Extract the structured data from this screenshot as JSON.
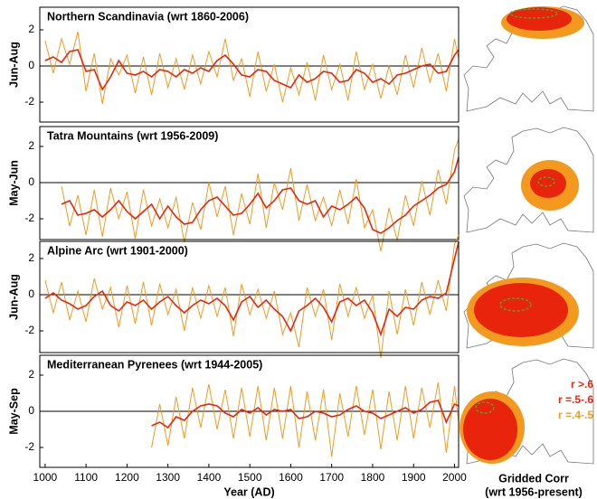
{
  "chart_data": [
    {
      "type": "line",
      "title": "Northern Scandinavia (wrt 1860-2006)",
      "ylabel": "Jun-Aug",
      "x": [
        1000,
        1020,
        1040,
        1060,
        1080,
        1100,
        1120,
        1140,
        1160,
        1180,
        1200,
        1220,
        1240,
        1260,
        1280,
        1300,
        1320,
        1340,
        1360,
        1380,
        1400,
        1420,
        1440,
        1460,
        1480,
        1500,
        1520,
        1540,
        1560,
        1580,
        1600,
        1620,
        1640,
        1660,
        1680,
        1700,
        1720,
        1740,
        1760,
        1780,
        1800,
        1820,
        1840,
        1860,
        1880,
        1900,
        1920,
        1940,
        1960,
        1980,
        2000,
        2010
      ],
      "series": [
        {
          "color": "#f39a1e",
          "values": [
            1.4,
            -0.4,
            1.5,
            0.1,
            1.9,
            -1.4,
            0.7,
            -2.1,
            0.4,
            -0.5,
            0.6,
            -1.5,
            0.5,
            -1.6,
            0.7,
            -1.2,
            0.4,
            -1.3,
            0.6,
            -1.0,
            0.8,
            -0.6,
            1.5,
            -0.8,
            0.4,
            -1.7,
            0.8,
            -1.4,
            0.1,
            -2.0,
            -0.1,
            -1.6,
            0.2,
            -1.9,
            0.6,
            -1.3,
            0.1,
            -1.9,
            0.8,
            -1.3,
            0.1,
            -1.8,
            0.0,
            -1.6,
            0.6,
            -1.2,
            1.0,
            -0.9,
            0.7,
            -1.4,
            1.5,
            0.4
          ]
        },
        {
          "color": "#e8250c",
          "values": [
            0.3,
            0.5,
            0.2,
            0.8,
            0.9,
            -0.3,
            -0.2,
            -1.3,
            -0.6,
            0.3,
            -0.4,
            -0.5,
            -0.3,
            -0.6,
            -0.2,
            -0.3,
            -0.6,
            -0.2,
            -0.4,
            -0.1,
            -0.3,
            0.3,
            0.6,
            0.1,
            -0.5,
            -0.6,
            -0.2,
            -0.3,
            -0.8,
            -1.0,
            -1.2,
            -0.5,
            -0.9,
            -0.7,
            -0.3,
            -0.4,
            -0.9,
            -0.8,
            -0.2,
            -0.4,
            -0.9,
            -0.7,
            -1.0,
            -0.5,
            -0.4,
            -0.2,
            0.0,
            0.1,
            -0.4,
            -0.3,
            0.6,
            0.9
          ]
        }
      ],
      "xlim": [
        987,
        2010
      ],
      "ylim": [
        -3.1,
        3.25
      ],
      "yticks": [
        -2,
        0,
        2
      ]
    },
    {
      "type": "line",
      "title": "Tatra Mountains (wrt 1956-2009)",
      "ylabel": "May-Jun",
      "x": [
        1000,
        1020,
        1040,
        1060,
        1080,
        1100,
        1120,
        1140,
        1160,
        1180,
        1200,
        1220,
        1240,
        1260,
        1280,
        1300,
        1320,
        1340,
        1360,
        1380,
        1400,
        1420,
        1440,
        1460,
        1480,
        1500,
        1520,
        1540,
        1560,
        1580,
        1600,
        1620,
        1640,
        1660,
        1680,
        1700,
        1720,
        1740,
        1760,
        1780,
        1800,
        1820,
        1840,
        1860,
        1880,
        1900,
        1920,
        1940,
        1960,
        1980,
        2000,
        2010
      ],
      "series": [
        {
          "color": "#f39a1e",
          "values": [
            null,
            null,
            -0.2,
            -2.4,
            -0.7,
            -2.9,
            -0.4,
            -3.0,
            -0.3,
            -2.0,
            -0.5,
            -3.1,
            -0.4,
            -2.4,
            -0.9,
            -2.5,
            -0.8,
            -3.3,
            -1.1,
            -2.6,
            0.0,
            -1.9,
            -0.2,
            -2.9,
            -0.6,
            -2.3,
            0.5,
            -2.5,
            0.0,
            -1.5,
            0.8,
            -2.1,
            -0.1,
            -2.1,
            -0.8,
            -2.4,
            -0.4,
            -2.3,
            0.2,
            -2.5,
            -1.5,
            -3.8,
            -1.4,
            -3.2,
            -0.7,
            -2.4,
            0.1,
            -1.8,
            0.7,
            -1.2,
            1.8,
            2.4
          ]
        },
        {
          "color": "#e8250c",
          "values": [
            null,
            null,
            -1.2,
            -1.0,
            -1.8,
            -1.7,
            -1.5,
            -1.9,
            -1.5,
            -1.0,
            -1.6,
            -2.0,
            -1.6,
            -1.2,
            -2.0,
            -1.3,
            -1.9,
            -2.3,
            -2.2,
            -1.5,
            -1.0,
            -0.8,
            -1.3,
            -1.8,
            -1.7,
            -1.2,
            -0.6,
            -1.4,
            -1.0,
            -0.4,
            -0.3,
            -1.0,
            -1.2,
            -1.0,
            -1.9,
            -1.3,
            -1.5,
            -1.2,
            -0.8,
            -1.4,
            -2.6,
            -2.8,
            -2.5,
            -2.1,
            -1.8,
            -1.3,
            -1.0,
            -0.7,
            -0.3,
            -0.1,
            0.6,
            1.4
          ]
        }
      ],
      "xlim": [
        987,
        2010
      ],
      "ylim": [
        -3.15,
        3.1
      ],
      "yticks": [
        -2,
        0,
        2
      ]
    },
    {
      "type": "line",
      "title": "Alpine Arc (wrt 1901-2000)",
      "ylabel": "Jun-Aug",
      "x": [
        1000,
        1020,
        1040,
        1060,
        1080,
        1100,
        1120,
        1140,
        1160,
        1180,
        1200,
        1220,
        1240,
        1260,
        1280,
        1300,
        1320,
        1340,
        1360,
        1380,
        1400,
        1420,
        1440,
        1460,
        1480,
        1500,
        1520,
        1540,
        1560,
        1580,
        1600,
        1620,
        1640,
        1660,
        1680,
        1700,
        1720,
        1740,
        1760,
        1780,
        1800,
        1820,
        1840,
        1860,
        1880,
        1900,
        1920,
        1940,
        1960,
        1980,
        2000,
        2010
      ],
      "series": [
        {
          "color": "#f39a1e",
          "values": [
            0.8,
            -1.0,
            0.7,
            -1.4,
            0.2,
            -1.5,
            0.9,
            -0.8,
            0.4,
            -1.8,
            0.5,
            -1.6,
            0.7,
            -1.7,
            0.6,
            -1.1,
            0.3,
            -2.0,
            0.4,
            -1.3,
            0.5,
            -1.2,
            0.4,
            -2.3,
            0.6,
            -1.1,
            0.3,
            -1.3,
            0.2,
            -2.2,
            -1.0,
            -2.9,
            0.4,
            -1.2,
            0.3,
            -2.5,
            0.6,
            -1.2,
            0.4,
            -1.3,
            0.0,
            -3.5,
            0.2,
            -2.2,
            0.3,
            -1.7,
            0.7,
            -1.1,
            0.8,
            -0.9,
            2.8,
            3.3
          ]
        },
        {
          "color": "#e8250c",
          "values": [
            -0.2,
            0.1,
            -0.3,
            -0.5,
            -0.8,
            -0.6,
            -0.1,
            0.2,
            -0.6,
            -0.9,
            -0.4,
            -0.6,
            -0.3,
            -0.8,
            -0.4,
            -0.1,
            -0.6,
            -1.0,
            -0.6,
            -0.3,
            -0.5,
            -0.2,
            -0.6,
            -1.4,
            -0.4,
            -0.1,
            -0.7,
            -0.3,
            -0.8,
            -1.2,
            -2.0,
            -0.9,
            -0.6,
            -0.2,
            -0.7,
            -1.5,
            -0.4,
            -0.2,
            -0.6,
            -0.3,
            -1.0,
            -2.2,
            -0.8,
            -1.2,
            -0.7,
            -0.8,
            -0.3,
            -0.1,
            -0.2,
            0.1,
            2.0,
            2.9
          ]
        }
      ],
      "xlim": [
        987,
        2010
      ],
      "ylim": [
        -3.2,
        2.95
      ],
      "yticks": [
        -2,
        0,
        2
      ]
    },
    {
      "type": "line",
      "title": "Mediterranean Pyrenees (wrt 1944-2005)",
      "ylabel": "May-Sep",
      "xlabel": "Year (AD)",
      "x": [
        1000,
        1020,
        1040,
        1060,
        1080,
        1100,
        1120,
        1140,
        1160,
        1180,
        1200,
        1220,
        1240,
        1260,
        1280,
        1300,
        1320,
        1340,
        1360,
        1380,
        1400,
        1420,
        1440,
        1460,
        1480,
        1500,
        1520,
        1540,
        1560,
        1580,
        1600,
        1620,
        1640,
        1660,
        1680,
        1700,
        1720,
        1740,
        1760,
        1780,
        1800,
        1820,
        1840,
        1860,
        1880,
        1900,
        1920,
        1940,
        1960,
        1980,
        2000,
        2010
      ],
      "series": [
        {
          "color": "#f39a1e",
          "values": [
            null,
            null,
            null,
            null,
            null,
            null,
            null,
            null,
            null,
            null,
            null,
            null,
            null,
            -2.0,
            0.4,
            -1.9,
            0.8,
            -1.5,
            1.3,
            -0.9,
            1.5,
            -1.0,
            1.2,
            -1.5,
            1.3,
            -1.4,
            1.4,
            -1.6,
            1.3,
            -1.5,
            1.4,
            -2.0,
            1.1,
            -1.6,
            1.2,
            -2.5,
            1.0,
            -1.4,
            1.4,
            -1.3,
            1.2,
            -2.1,
            1.1,
            -1.6,
            1.4,
            -1.5,
            1.3,
            -0.9,
            1.6,
            -2.3,
            1.4,
            -0.6
          ]
        },
        {
          "color": "#e8250c",
          "values": [
            null,
            null,
            null,
            null,
            null,
            null,
            null,
            null,
            null,
            null,
            null,
            null,
            null,
            -0.8,
            -0.6,
            -0.9,
            -0.3,
            -0.5,
            0.0,
            0.3,
            0.4,
            0.3,
            -0.1,
            -0.3,
            0.1,
            -0.1,
            0.2,
            -0.2,
            0.1,
            0.0,
            0.1,
            -0.4,
            -0.3,
            0.0,
            -0.1,
            -0.3,
            -0.2,
            0.1,
            0.3,
            0.0,
            -0.1,
            -0.4,
            -0.2,
            0.0,
            0.2,
            -0.1,
            0.1,
            0.5,
            0.6,
            -0.6,
            0.4,
            0.3
          ]
        }
      ],
      "xlim": [
        987,
        2010
      ],
      "ylim": [
        -3.1,
        3.1
      ],
      "yticks": [
        -2,
        0,
        2
      ],
      "xticks": [
        1000,
        1100,
        1200,
        1300,
        1400,
        1500,
        1600,
        1700,
        1800,
        1900,
        2000
      ]
    }
  ],
  "map": {
    "title": "Gridded Corr",
    "subtitle": "(wrt 1956-present)",
    "legend": [
      {
        "label": "r >.6",
        "color": "#e8250c"
      },
      {
        "label": "r =.5-.6",
        "color": "#e8250c"
      },
      {
        "label": "r =.4-.5",
        "color": "#f39a1e"
      }
    ]
  }
}
